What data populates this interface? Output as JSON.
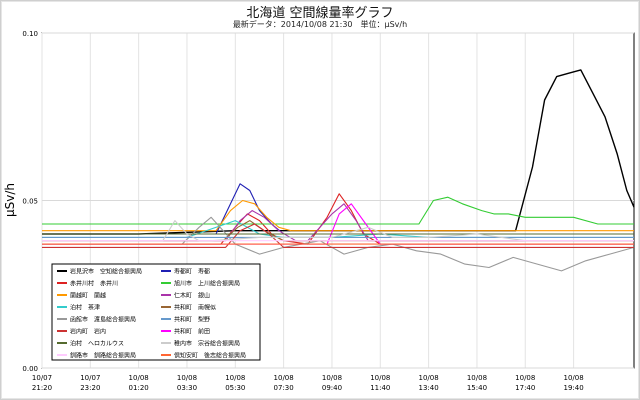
{
  "page": {
    "title": "北海道 空間線量率グラフ",
    "subtitle": "最新データ：2014/10/08 21:30　単位：µSv/h"
  },
  "chart_data": {
    "type": "line",
    "ylabel": "µSv/h",
    "ylim": [
      0,
      0.1
    ],
    "yticks": [
      {
        "v": 0.0,
        "label": "0.00"
      },
      {
        "v": 0.05,
        "label": "0.05"
      },
      {
        "v": 0.1,
        "label": "0.10"
      }
    ],
    "xlim": [
      0,
      24.5
    ],
    "xticks": [
      {
        "t": 0,
        "l1": "10/07",
        "l2": "21:20"
      },
      {
        "t": 2,
        "l1": "10/07",
        "l2": "23:20"
      },
      {
        "t": 4,
        "l1": "10/08",
        "l2": "01:20"
      },
      {
        "t": 6,
        "l1": "10/08",
        "l2": "03:30"
      },
      {
        "t": 8,
        "l1": "10/08",
        "l2": "05:30"
      },
      {
        "t": 10,
        "l1": "10/08",
        "l2": "07:30"
      },
      {
        "t": 12,
        "l1": "10/08",
        "l2": "09:40"
      },
      {
        "t": 14,
        "l1": "10/08",
        "l2": "11:40"
      },
      {
        "t": 16,
        "l1": "10/08",
        "l2": "13:40"
      },
      {
        "t": 18,
        "l1": "10/08",
        "l2": "15:40"
      },
      {
        "t": 20,
        "l1": "10/08",
        "l2": "17:40"
      },
      {
        "t": 22,
        "l1": "10/08",
        "l2": "19:40"
      }
    ],
    "series": [
      {
        "name": "岩見沢市　空知総合振興局",
        "color": "#000000",
        "x": [
          0,
          4,
          8,
          12,
          16,
          19.6,
          20.3,
          20.8,
          21.3,
          21.8,
          22.3,
          22.8,
          23.3,
          23.8,
          24.2,
          24.5
        ],
        "y": [
          0.04,
          0.04,
          0.041,
          0.041,
          0.041,
          0.041,
          0.06,
          0.08,
          0.087,
          0.088,
          0.089,
          0.082,
          0.075,
          0.064,
          0.053,
          0.048
        ]
      },
      {
        "name": "寿都町　寿都",
        "color": "#1f1fb3",
        "x": [
          0,
          7.2,
          7.8,
          8.2,
          8.6,
          9.0,
          9.5,
          10,
          12,
          16,
          20,
          24.5
        ],
        "y": [
          0.04,
          0.04,
          0.049,
          0.055,
          0.053,
          0.047,
          0.043,
          0.04,
          0.04,
          0.04,
          0.04,
          0.04
        ]
      },
      {
        "name": "赤井川村　赤井川",
        "color": "#dd2222",
        "x": [
          0,
          7.4,
          8.0,
          8.5,
          9.0,
          9.5,
          10,
          11,
          11.8,
          12.3,
          12.8,
          13.3,
          14,
          16,
          20,
          24.5
        ],
        "y": [
          0.037,
          0.037,
          0.042,
          0.046,
          0.044,
          0.04,
          0.038,
          0.037,
          0.045,
          0.052,
          0.047,
          0.04,
          0.037,
          0.037,
          0.037,
          0.037
        ]
      },
      {
        "name": "旭川市　上川総合振興局",
        "color": "#33cc33",
        "x": [
          0,
          6,
          12,
          15.6,
          16.2,
          16.8,
          17.4,
          18.2,
          18.7,
          19.3,
          20,
          21,
          22,
          23,
          24.5
        ],
        "y": [
          0.043,
          0.043,
          0.043,
          0.043,
          0.05,
          0.051,
          0.049,
          0.047,
          0.046,
          0.046,
          0.045,
          0.045,
          0.045,
          0.043,
          0.043
        ]
      },
      {
        "name": "蘭越町　蘭越",
        "color": "#ff9900",
        "x": [
          0,
          7.2,
          7.8,
          8.3,
          8.8,
          9.3,
          9.8,
          10.3,
          12,
          16,
          20,
          24.5
        ],
        "y": [
          0.041,
          0.041,
          0.047,
          0.05,
          0.049,
          0.045,
          0.042,
          0.041,
          0.041,
          0.041,
          0.041,
          0.041
        ]
      },
      {
        "name": "仁木町　銀山",
        "color": "#aa33aa",
        "x": [
          0,
          7.6,
          8.2,
          8.7,
          9.2,
          9.8,
          10.5,
          11,
          12.0,
          12.5,
          13.0,
          13.5,
          14,
          16,
          20,
          24.5
        ],
        "y": [
          0.038,
          0.038,
          0.044,
          0.047,
          0.045,
          0.041,
          0.038,
          0.038,
          0.046,
          0.049,
          0.044,
          0.038,
          0.038,
          0.038,
          0.038,
          0.038
        ]
      },
      {
        "name": "泊村　茶津",
        "color": "#33cccc",
        "x": [
          0,
          3,
          6,
          8,
          9,
          10,
          12,
          14,
          16,
          18,
          20,
          22,
          24.5
        ],
        "y": [
          0.039,
          0.039,
          0.039,
          0.044,
          0.04,
          0.039,
          0.039,
          0.04,
          0.039,
          0.039,
          0.039,
          0.039,
          0.039
        ]
      },
      {
        "name": "共和町　南幌似",
        "color": "#996633",
        "x": [
          0,
          7.5,
          8.1,
          8.6,
          9.2,
          10,
          12,
          16,
          20,
          24.5
        ],
        "y": [
          0.038,
          0.038,
          0.042,
          0.044,
          0.041,
          0.038,
          0.038,
          0.038,
          0.038,
          0.038
        ]
      },
      {
        "name": "函館市　渡島総合振興局",
        "color": "#999999",
        "x": [
          0,
          4,
          5.8,
          6.5,
          7.0,
          7.5,
          8.0,
          9,
          10,
          11.5,
          12.5,
          13.5,
          14.5,
          15.5,
          16.5,
          17.5,
          18.5,
          19.5,
          20.5,
          21.5,
          22.5,
          23.5,
          24.5
        ],
        "y": [
          0.037,
          0.037,
          0.037,
          0.042,
          0.045,
          0.041,
          0.037,
          0.034,
          0.036,
          0.038,
          0.034,
          0.036,
          0.037,
          0.035,
          0.034,
          0.031,
          0.03,
          0.033,
          0.031,
          0.029,
          0.032,
          0.034,
          0.036
        ]
      },
      {
        "name": "共和町　梨野",
        "color": "#6699cc",
        "x": [
          0,
          6,
          9,
          12,
          16,
          20,
          24.5
        ],
        "y": [
          0.039,
          0.039,
          0.039,
          0.039,
          0.039,
          0.039,
          0.039
        ]
      },
      {
        "name": "岩内町　岩内",
        "color": "#cc3333",
        "x": [
          0,
          7.6,
          8.2,
          8.8,
          9.4,
          10,
          12,
          16,
          20,
          24.5
        ],
        "y": [
          0.036,
          0.036,
          0.041,
          0.043,
          0.04,
          0.036,
          0.036,
          0.036,
          0.036,
          0.036
        ]
      },
      {
        "name": "共和町　前田",
        "color": "#ff00ff",
        "x": [
          0,
          11.8,
          12.3,
          12.8,
          13.4,
          14,
          16,
          20,
          24.5
        ],
        "y": [
          0.037,
          0.037,
          0.046,
          0.049,
          0.043,
          0.037,
          0.037,
          0.037,
          0.037
        ]
      },
      {
        "name": "泊村　ヘロカルウス",
        "color": "#556b2f",
        "x": [
          0,
          6,
          10,
          14,
          18,
          22,
          24.5
        ],
        "y": [
          0.04,
          0.04,
          0.04,
          0.04,
          0.04,
          0.04,
          0.04
        ]
      },
      {
        "name": "稚内市　宗谷総合振興局",
        "color": "#cccccc",
        "x": [
          0,
          5,
          5.5,
          6.0,
          6.5,
          7,
          9,
          12,
          13.5,
          14.5,
          16,
          18,
          20,
          22,
          24,
          24.5
        ],
        "y": [
          0.038,
          0.038,
          0.044,
          0.04,
          0.038,
          0.038,
          0.039,
          0.039,
          0.042,
          0.039,
          0.039,
          0.04,
          0.038,
          0.038,
          0.038,
          0.038
        ]
      },
      {
        "name": "釧路市　釧路総合振興局",
        "color": "#ffccff",
        "x": [
          0,
          6,
          12,
          16,
          20,
          24.5
        ],
        "y": [
          0.038,
          0.038,
          0.038,
          0.038,
          0.038,
          0.038
        ]
      },
      {
        "name": "倶知安町　後志総合振興局",
        "color": "#ff6633",
        "x": [
          0,
          6,
          12,
          16,
          20,
          24.5
        ],
        "y": [
          0.037,
          0.037,
          0.037,
          0.037,
          0.037,
          0.037
        ]
      }
    ]
  }
}
